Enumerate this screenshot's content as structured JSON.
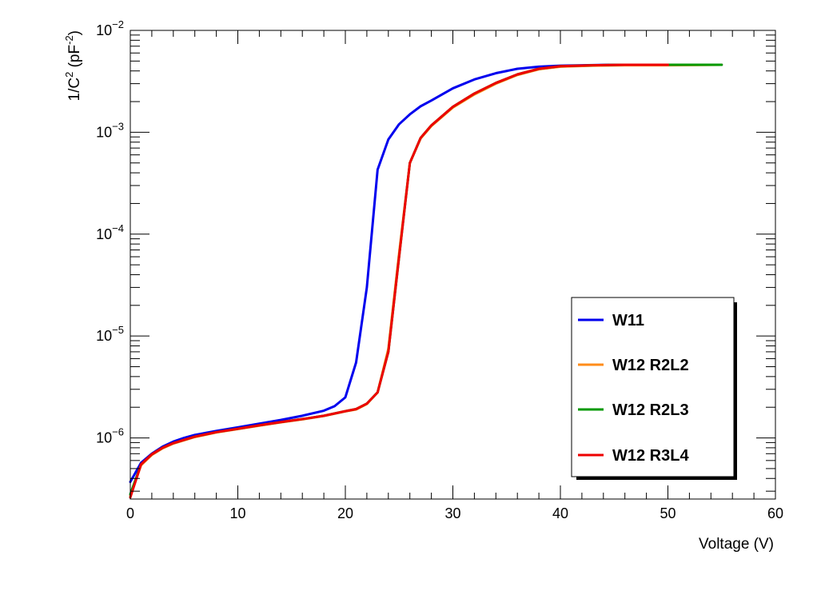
{
  "chart_data": {
    "type": "line",
    "title": "",
    "xlabel": "Voltage (V)",
    "ylabel_parts": {
      "base": "1/C",
      "sup1": "2",
      "mid": " (pF",
      "sup2": "-2",
      "end": ")"
    },
    "xlim": [
      0,
      60
    ],
    "ylim_log10": [
      -6.6,
      -2
    ],
    "y_scale": "log",
    "x_ticks": [
      {
        "value": 0,
        "label": "0"
      },
      {
        "value": 10,
        "label": "10"
      },
      {
        "value": 20,
        "label": "20"
      },
      {
        "value": 30,
        "label": "30"
      },
      {
        "value": 40,
        "label": "40"
      },
      {
        "value": 50,
        "label": "50"
      },
      {
        "value": 60,
        "label": "60"
      }
    ],
    "y_ticks": [
      {
        "exp": -6,
        "base": "10",
        "sup": "−6"
      },
      {
        "exp": -5,
        "base": "10",
        "sup": "−5"
      },
      {
        "exp": -4,
        "base": "10",
        "sup": "−4"
      },
      {
        "exp": -3,
        "base": "10",
        "sup": "−3"
      },
      {
        "exp": -2,
        "base": "10",
        "sup": "−2"
      }
    ],
    "grid": false,
    "legend_position": "bottom-right",
    "series": [
      {
        "name": "W11",
        "color": "#0000ee",
        "points": [
          [
            0,
            3.7e-07
          ],
          [
            1,
            5.7e-07
          ],
          [
            2,
            7e-07
          ],
          [
            3,
            8.2e-07
          ],
          [
            4,
            9.2e-07
          ],
          [
            5,
            1e-06
          ],
          [
            6,
            1.07e-06
          ],
          [
            8,
            1.17e-06
          ],
          [
            10,
            1.27e-06
          ],
          [
            12,
            1.38e-06
          ],
          [
            14,
            1.5e-06
          ],
          [
            16,
            1.65e-06
          ],
          [
            18,
            1.85e-06
          ],
          [
            19,
            2.05e-06
          ],
          [
            20,
            2.5e-06
          ],
          [
            21,
            5.5e-06
          ],
          [
            22,
            3e-05
          ],
          [
            23,
            0.00043
          ],
          [
            24,
            0.00085
          ],
          [
            25,
            0.0012
          ],
          [
            26,
            0.0015
          ],
          [
            27,
            0.0018
          ],
          [
            28,
            0.00205
          ],
          [
            30,
            0.0027
          ],
          [
            32,
            0.0033
          ],
          [
            34,
            0.0038
          ],
          [
            36,
            0.0042
          ],
          [
            38,
            0.0044
          ],
          [
            40,
            0.0045
          ],
          [
            45,
            0.0046
          ],
          [
            50,
            0.0046
          ],
          [
            55,
            0.0046
          ]
        ]
      },
      {
        "name": "W12 R2L2",
        "color": "#ff8c1a",
        "points": [
          [
            0,
            2.7e-07
          ],
          [
            1,
            5.4e-07
          ],
          [
            2,
            6.8e-07
          ],
          [
            3,
            7.9e-07
          ],
          [
            4,
            8.8e-07
          ],
          [
            6,
            1.02e-06
          ],
          [
            8,
            1.13e-06
          ],
          [
            10,
            1.22e-06
          ],
          [
            12,
            1.32e-06
          ],
          [
            14,
            1.42e-06
          ],
          [
            16,
            1.52e-06
          ],
          [
            18,
            1.64e-06
          ],
          [
            20,
            1.82e-06
          ],
          [
            21,
            1.9e-06
          ],
          [
            22,
            2.15e-06
          ],
          [
            23,
            2.8e-06
          ],
          [
            24,
            7.5e-06
          ],
          [
            25,
            6.5e-05
          ],
          [
            26,
            0.0005
          ],
          [
            27,
            0.00087
          ],
          [
            28,
            0.00115
          ],
          [
            30,
            0.00175
          ],
          [
            32,
            0.00235
          ],
          [
            34,
            0.003
          ],
          [
            36,
            0.00365
          ],
          [
            38,
            0.00415
          ],
          [
            40,
            0.0044
          ],
          [
            43,
            0.0045
          ],
          [
            46,
            0.00455
          ],
          [
            50,
            0.00455
          ],
          [
            55,
            0.0046
          ]
        ]
      },
      {
        "name": "W12 R2L3",
        "color": "#009900",
        "points": [
          [
            0,
            2.8e-07
          ],
          [
            1,
            5.5e-07
          ],
          [
            2,
            6.9e-07
          ],
          [
            3,
            8e-07
          ],
          [
            4,
            8.9e-07
          ],
          [
            6,
            1.03e-06
          ],
          [
            8,
            1.14e-06
          ],
          [
            10,
            1.23e-06
          ],
          [
            12,
            1.33e-06
          ],
          [
            14,
            1.43e-06
          ],
          [
            16,
            1.53e-06
          ],
          [
            18,
            1.65e-06
          ],
          [
            20,
            1.83e-06
          ],
          [
            21,
            1.92e-06
          ],
          [
            22,
            2.17e-06
          ],
          [
            23,
            2.8e-06
          ],
          [
            24,
            7e-06
          ],
          [
            25,
            6e-05
          ],
          [
            26,
            0.0005
          ],
          [
            27,
            0.00088
          ],
          [
            28,
            0.00117
          ],
          [
            30,
            0.00178
          ],
          [
            32,
            0.0024
          ],
          [
            34,
            0.00305
          ],
          [
            36,
            0.0037
          ],
          [
            38,
            0.0042
          ],
          [
            40,
            0.00445
          ],
          [
            43,
            0.00455
          ],
          [
            46,
            0.0046
          ],
          [
            50,
            0.0046
          ],
          [
            55,
            0.0046
          ]
        ]
      },
      {
        "name": "W12 R3L4",
        "color": "#ee0000",
        "points": [
          [
            0,
            2.6e-07
          ],
          [
            1,
            5.5e-07
          ],
          [
            2,
            6.9e-07
          ],
          [
            3,
            8e-07
          ],
          [
            4,
            8.9e-07
          ],
          [
            6,
            1.03e-06
          ],
          [
            8,
            1.14e-06
          ],
          [
            10,
            1.23e-06
          ],
          [
            12,
            1.33e-06
          ],
          [
            14,
            1.43e-06
          ],
          [
            16,
            1.53e-06
          ],
          [
            18,
            1.65e-06
          ],
          [
            20,
            1.83e-06
          ],
          [
            21,
            1.92e-06
          ],
          [
            22,
            2.17e-06
          ],
          [
            23,
            2.8e-06
          ],
          [
            24,
            7e-06
          ],
          [
            25,
            6e-05
          ],
          [
            26,
            0.0005
          ],
          [
            27,
            0.00088
          ],
          [
            28,
            0.00117
          ],
          [
            30,
            0.00178
          ],
          [
            32,
            0.0024
          ],
          [
            34,
            0.00305
          ],
          [
            36,
            0.0037
          ],
          [
            38,
            0.0042
          ],
          [
            40,
            0.00445
          ],
          [
            43,
            0.00455
          ],
          [
            46,
            0.0046
          ],
          [
            50,
            0.0046
          ]
        ]
      }
    ]
  }
}
